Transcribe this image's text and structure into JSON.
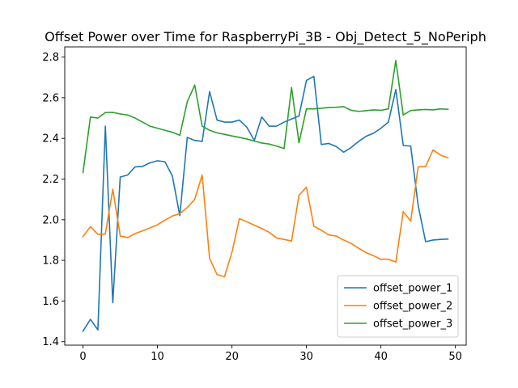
{
  "chart_data": {
    "type": "line",
    "title": "Offset Power over Time for RaspberryPi_3B - Obj_Detect_5_NoPeriph",
    "xlabel": "",
    "ylabel": "",
    "xlim": [
      -2.45,
      51.45
    ],
    "ylim": [
      1.383,
      2.85
    ],
    "xticks": [
      0,
      10,
      20,
      30,
      40,
      50
    ],
    "yticks": [
      1.4,
      1.6,
      1.8,
      2.0,
      2.2,
      2.4,
      2.6,
      2.8
    ],
    "ytick_labels": [
      "1.4",
      "1.6",
      "1.8",
      "2.0",
      "2.2",
      "2.4",
      "2.6",
      "2.8"
    ],
    "grid": false,
    "legend_position": "lower-right",
    "x": [
      0,
      1,
      2,
      3,
      4,
      5,
      6,
      7,
      8,
      9,
      10,
      11,
      12,
      13,
      14,
      15,
      16,
      17,
      18,
      19,
      20,
      21,
      22,
      23,
      24,
      25,
      26,
      27,
      28,
      29,
      30,
      31,
      32,
      33,
      34,
      35,
      36,
      37,
      38,
      39,
      40,
      41,
      42,
      43,
      44,
      45,
      46,
      47,
      48,
      49
    ],
    "series": [
      {
        "name": "offset_power_1",
        "color": "#1f77b4",
        "values": [
          1.452,
          1.51,
          1.458,
          2.46,
          1.592,
          2.21,
          2.22,
          2.26,
          2.262,
          2.28,
          2.29,
          2.285,
          2.215,
          2.02,
          2.405,
          2.39,
          2.385,
          2.63,
          2.49,
          2.48,
          2.48,
          2.49,
          2.455,
          2.39,
          2.505,
          2.46,
          2.46,
          2.48,
          2.495,
          2.51,
          2.685,
          2.705,
          2.37,
          2.375,
          2.36,
          2.332,
          2.355,
          2.385,
          2.41,
          2.425,
          2.45,
          2.48,
          2.64,
          2.365,
          2.362,
          2.07,
          1.892,
          1.9,
          1.903,
          1.905
        ]
      },
      {
        "name": "offset_power_2",
        "color": "#ff7f0e",
        "values": [
          1.918,
          1.965,
          1.928,
          1.93,
          2.15,
          1.92,
          1.912,
          1.932,
          1.945,
          1.96,
          1.975,
          1.998,
          2.018,
          2.03,
          2.06,
          2.1,
          2.22,
          1.81,
          1.73,
          1.72,
          1.84,
          2.005,
          1.99,
          1.973,
          1.957,
          1.938,
          1.91,
          1.903,
          1.895,
          2.12,
          2.16,
          1.968,
          1.948,
          1.925,
          1.92,
          1.9,
          1.883,
          1.86,
          1.838,
          1.823,
          1.805,
          1.806,
          1.792,
          2.04,
          1.993,
          2.26,
          2.262,
          2.343,
          2.318,
          2.305
        ]
      },
      {
        "name": "offset_power_3",
        "color": "#2ca02c",
        "values": [
          2.232,
          2.505,
          2.5,
          2.527,
          2.528,
          2.52,
          2.515,
          2.5,
          2.48,
          2.46,
          2.45,
          2.44,
          2.43,
          2.415,
          2.58,
          2.662,
          2.46,
          2.44,
          2.427,
          2.42,
          2.412,
          2.405,
          2.397,
          2.387,
          2.377,
          2.372,
          2.362,
          2.35,
          2.65,
          2.378,
          2.545,
          2.545,
          2.548,
          2.552,
          2.553,
          2.556,
          2.538,
          2.533,
          2.536,
          2.54,
          2.538,
          2.545,
          2.783,
          2.515,
          2.537,
          2.54,
          2.542,
          2.54,
          2.545,
          2.543
        ]
      }
    ]
  }
}
